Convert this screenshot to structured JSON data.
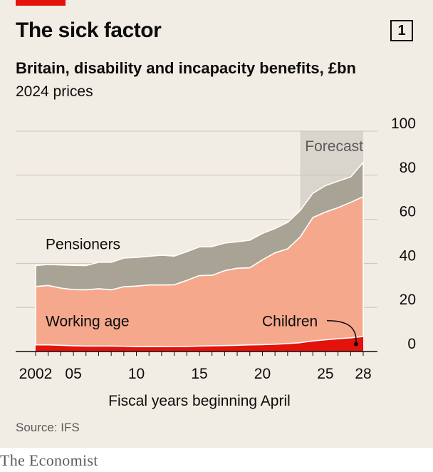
{
  "header": {
    "title": "The sick factor",
    "chart_number": "1",
    "subtitle": "Britain, disability and incapacity benefits, £bn",
    "subtitle2": "2024 prices"
  },
  "footer": {
    "source": "Source: IFS",
    "logo": "The Economist"
  },
  "colors": {
    "pensioners": "#a8a394",
    "working_age": "#f5a88c",
    "children": "#e3120b",
    "forecast_band": "#d9d5cd",
    "gridline": "#c9c4bb",
    "text": "#0c0c0c"
  },
  "chart_data": {
    "type": "area",
    "stacked": true,
    "title": "The sick factor",
    "subtitle": "Britain, disability and incapacity benefits, £bn",
    "xlabel": "Fiscal years beginning April",
    "ylabel": "",
    "x": [
      2002,
      2003,
      2004,
      2005,
      2006,
      2007,
      2008,
      2009,
      2010,
      2011,
      2012,
      2013,
      2014,
      2015,
      2016,
      2017,
      2018,
      2019,
      2020,
      2021,
      2022,
      2023,
      2024,
      2025,
      2026,
      2027,
      2028
    ],
    "series": [
      {
        "name": "Children",
        "values": [
          3,
          3,
          2.8,
          2.6,
          2.5,
          2.5,
          2.5,
          2.4,
          2.2,
          2.2,
          2.2,
          2.3,
          2.3,
          2.5,
          2.6,
          2.7,
          2.8,
          3.0,
          3.1,
          3.3,
          3.6,
          4.0,
          4.8,
          5.3,
          5.8,
          6.2,
          6.8
        ]
      },
      {
        "name": "Working age",
        "values": [
          26.5,
          27,
          26,
          25.5,
          25.5,
          26,
          25.5,
          27,
          27.5,
          28,
          28,
          28,
          30,
          32,
          32,
          34,
          35,
          35,
          38.5,
          41.5,
          43,
          48,
          56,
          58,
          59.5,
          61.5,
          63.5
        ]
      },
      {
        "name": "Pensioners",
        "values": [
          9.5,
          9.5,
          10.5,
          11,
          11,
          12,
          12.5,
          13,
          13,
          13,
          13.5,
          13,
          13,
          13,
          13,
          12.5,
          12,
          12.5,
          12,
          11,
          12,
          12,
          11,
          12,
          12,
          11.5,
          15.5
        ]
      }
    ],
    "xlim": [
      2002,
      2028
    ],
    "ylim": [
      0,
      100
    ],
    "y_ticks": [
      "0",
      "20",
      "40",
      "60",
      "80",
      "100"
    ],
    "x_ticks": [
      {
        "x": 2002,
        "label": "2002"
      },
      {
        "x": 2005,
        "label": "05"
      },
      {
        "x": 2010,
        "label": "10"
      },
      {
        "x": 2015,
        "label": "15"
      },
      {
        "x": 2020,
        "label": "20"
      },
      {
        "x": 2025,
        "label": "25"
      },
      {
        "x": 2028,
        "label": "28"
      }
    ],
    "forecast_range": [
      2023,
      2028
    ],
    "annotations": {
      "forecast": "Forecast"
    },
    "grid": true
  }
}
